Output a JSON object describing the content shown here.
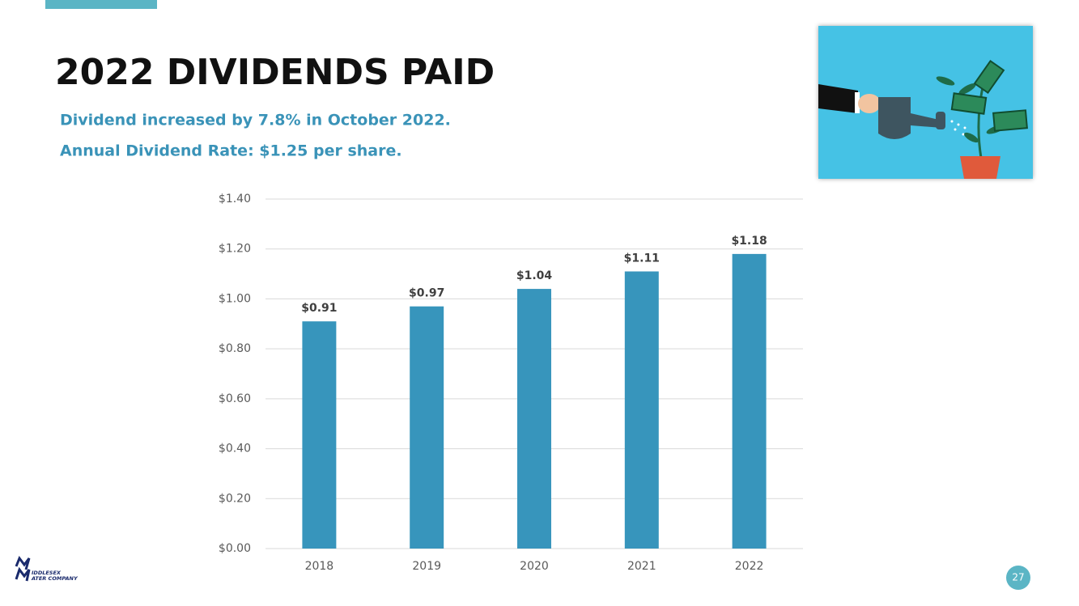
{
  "slide": {
    "title": "2022 DIVIDENDS PAID",
    "subtitle_lines": [
      "Dividend increased by 7.8% in October 2022.",
      "Annual Dividend Rate: $1.25 per share."
    ],
    "logo_lines": [
      "IDDLESEX",
      "ATER COMPANY"
    ],
    "page_number": "27"
  },
  "chart_data": {
    "type": "bar",
    "categories": [
      "2018",
      "2019",
      "2020",
      "2021",
      "2022"
    ],
    "values": [
      0.91,
      0.97,
      1.04,
      1.11,
      1.18
    ],
    "value_labels": [
      "$0.91",
      "$0.97",
      "$1.04",
      "$1.11",
      "$1.18"
    ],
    "color": "#3795bc",
    "ylim": [
      0,
      1.4
    ],
    "yticks": [
      {
        "value": 0,
        "label": "$0.00"
      },
      {
        "value": 0.2,
        "label": "$0.20"
      },
      {
        "value": 0.4,
        "label": "$0.40"
      },
      {
        "value": 0.6,
        "label": "$0.60"
      },
      {
        "value": 0.8,
        "label": "$0.80"
      },
      {
        "value": 1.0,
        "label": "$1.00"
      },
      {
        "value": 1.2,
        "label": "$1.20"
      },
      {
        "value": 1.4,
        "label": "$1.40"
      }
    ],
    "grid": true
  }
}
